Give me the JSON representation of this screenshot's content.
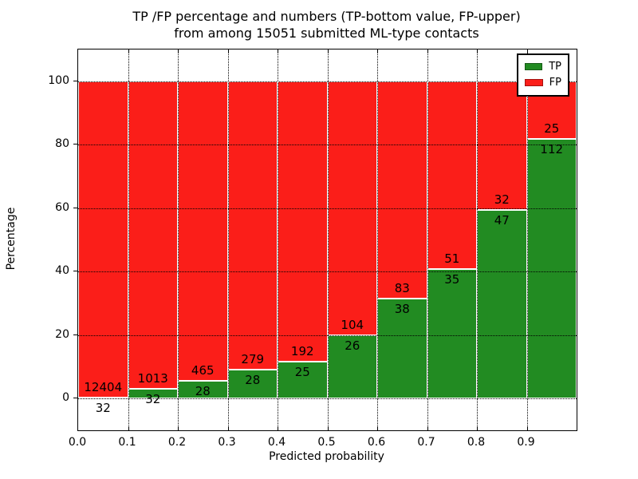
{
  "chart_data": {
    "type": "bar",
    "stacked": true,
    "title_lines": [
      "TP /FP percentage and numbers (TP-bottom value, FP-upper)",
      "from among 15051 submitted ML-type contacts"
    ],
    "xlabel": "Predicted probability",
    "ylabel": "Percentage",
    "x_tick_labels": [
      "0.0",
      "0.1",
      "0.2",
      "0.3",
      "0.4",
      "0.5",
      "0.6",
      "0.7",
      "0.8",
      "0.9"
    ],
    "y_tick_labels": [
      "0",
      "20",
      "40",
      "60",
      "80",
      "100"
    ],
    "y_tick_values": [
      0,
      20,
      40,
      60,
      80,
      100
    ],
    "ylim": [
      -10,
      110
    ],
    "xlim": [
      0.0,
      1.0
    ],
    "bin_width": 0.1,
    "grid": "dotted",
    "legend_position": "upper-right",
    "categories": [
      "0.0-0.1",
      "0.1-0.2",
      "0.2-0.3",
      "0.3-0.4",
      "0.4-0.5",
      "0.5-0.6",
      "0.6-0.7",
      "0.7-0.8",
      "0.8-0.9",
      "0.9-1.0"
    ],
    "series": [
      {
        "name": "TP",
        "counts": [
          32,
          32,
          28,
          28,
          25,
          26,
          38,
          35,
          47,
          112
        ]
      },
      {
        "name": "FP",
        "counts": [
          12404,
          1013,
          465,
          279,
          192,
          104,
          83,
          51,
          32,
          25
        ]
      }
    ],
    "tp_percent_of_bin": [
      0.26,
      3.06,
      5.68,
      9.12,
      11.52,
      20.0,
      31.4,
      40.7,
      59.5,
      81.8
    ],
    "legend": [
      {
        "label": "TP",
        "color": "#228b22"
      },
      {
        "label": "FP",
        "color": "#fb1e19"
      }
    ],
    "colors": {
      "tp": "#228b22",
      "fp": "#fb1e19",
      "bar_edge": "#ffffff",
      "grid": "#000000",
      "text": "#000000",
      "background": "#ffffff"
    }
  }
}
